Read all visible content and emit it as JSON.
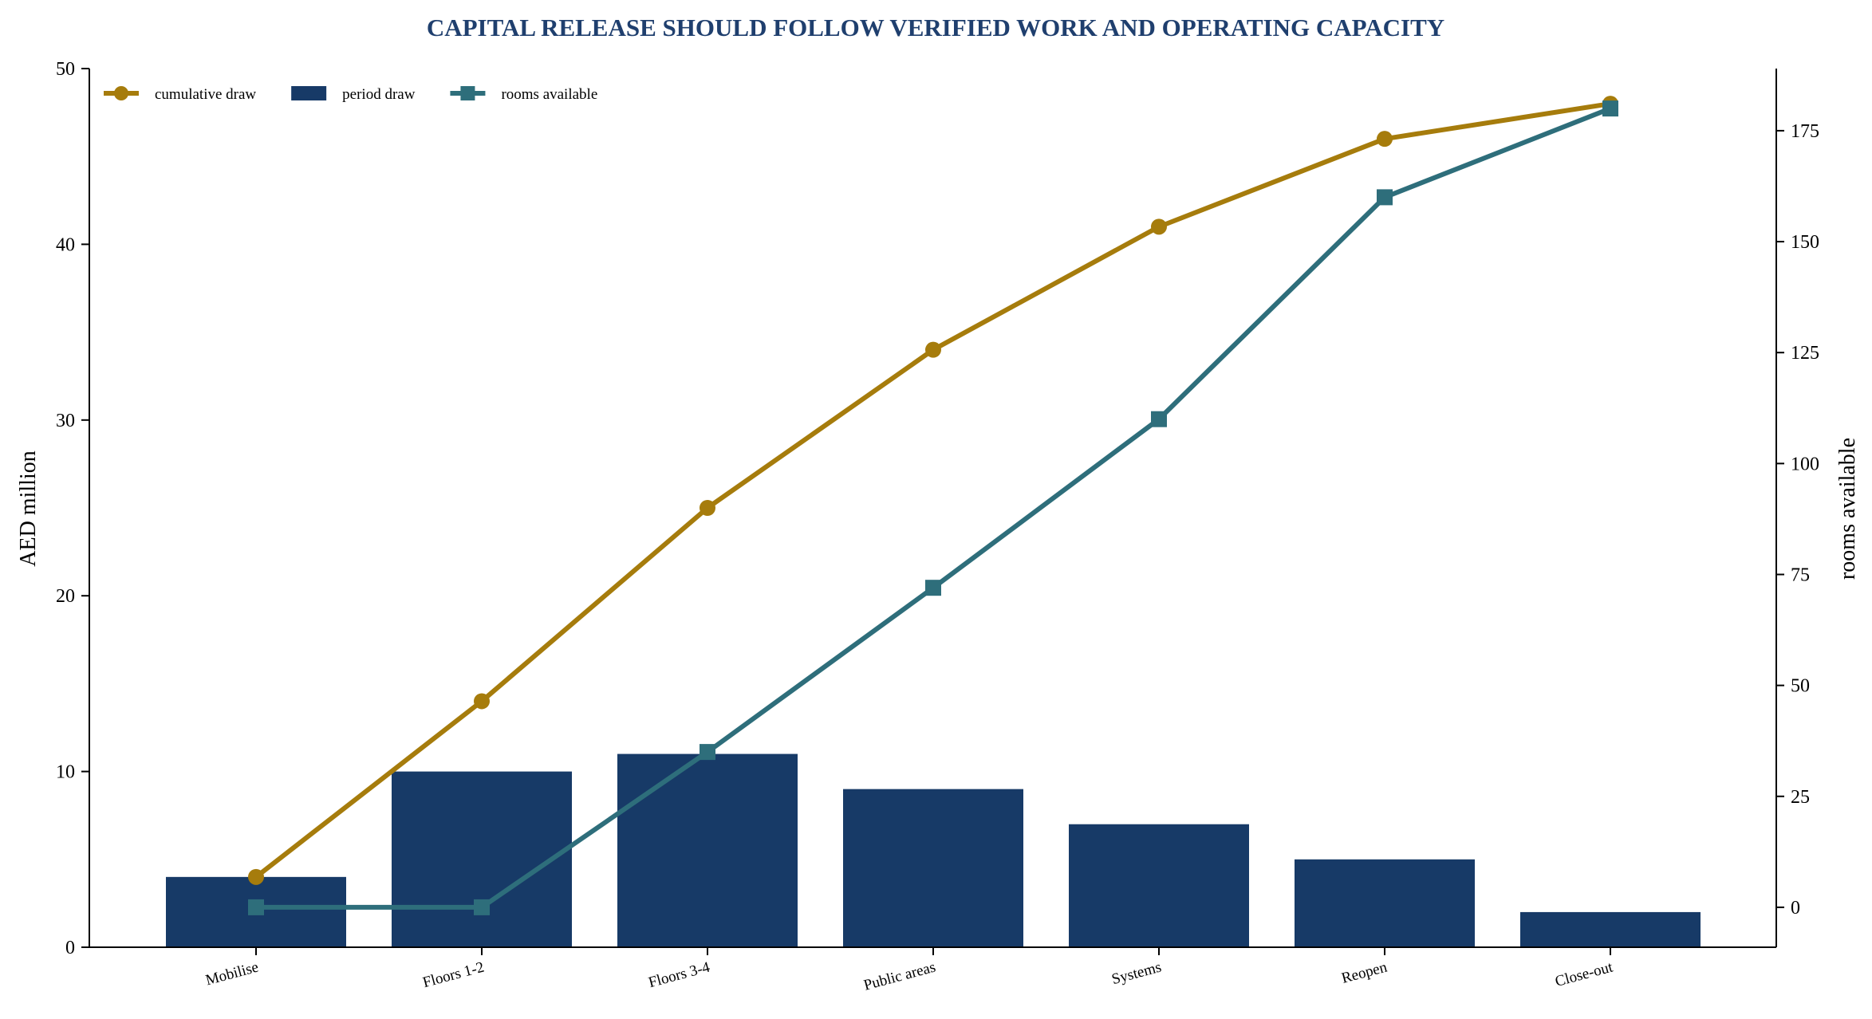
{
  "chart_data": {
    "type": "bar",
    "title": "CAPITAL RELEASE SHOULD FOLLOW VERIFIED WORK AND OPERATING CAPACITY",
    "categories": [
      "Mobilise",
      "Floors 1-2",
      "Floors 3-4",
      "Public areas",
      "Systems",
      "Reopen",
      "Close-out"
    ],
    "ylabel": "AED million",
    "y2label": "rooms available",
    "ylim": [
      0,
      50
    ],
    "y2lim": [
      -9,
      189
    ],
    "yticks": [
      0,
      10,
      20,
      30,
      40,
      50
    ],
    "y2ticks": [
      0,
      25,
      50,
      75,
      100,
      125,
      150,
      175
    ],
    "legend_position": "top-left",
    "grid": false,
    "series": [
      {
        "name": "period draw",
        "type": "bar",
        "axis": "left",
        "values": [
          4,
          10,
          11,
          9,
          7,
          5,
          2
        ],
        "color": "#173a67"
      },
      {
        "name": "cumulative draw",
        "type": "line",
        "marker": "circle",
        "axis": "left",
        "values": [
          4,
          14,
          25,
          34,
          41,
          46,
          48
        ],
        "color": "#a67c0c"
      },
      {
        "name": "rooms available",
        "type": "line",
        "marker": "square",
        "axis": "right",
        "values": [
          0,
          0,
          35,
          72,
          110,
          160,
          180
        ],
        "color": "#2e6e7b"
      }
    ],
    "legend_order": [
      "cumulative draw",
      "period draw",
      "rooms available"
    ],
    "title_color": "#1f3f6e"
  }
}
